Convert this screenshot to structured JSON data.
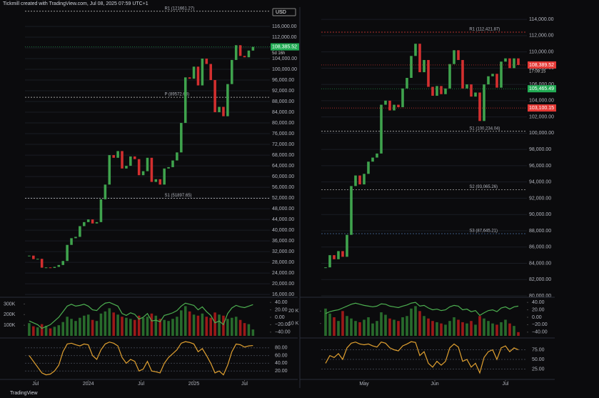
{
  "header": "Tickmill created with TradingView.com, Jul 08, 2025 07:59 UTC+1",
  "currency": "USD",
  "footer": "TradingView",
  "chart_data": [
    {
      "type": "candlestick",
      "values": [
        30500,
        29200,
        29300,
        26000,
        26100,
        25900,
        26300,
        27000,
        28500,
        34500,
        37000,
        37500,
        41500,
        43000,
        44000,
        42500,
        43000,
        51500,
        57000,
        68000,
        67000,
        69500,
        63000,
        64000,
        67500,
        66500,
        60500,
        62000,
        67000,
        58000,
        59000,
        57000,
        63000,
        63500,
        66000,
        69000,
        80000,
        97000,
        96500,
        101000,
        94000,
        104000,
        102000,
        96000,
        84000,
        86000,
        82500,
        94500,
        103500,
        109000,
        105000,
        104500,
        107000,
        108385.52
      ],
      "up_color": "#3fa34d",
      "down_color": "#d32f2f",
      "xlim": [
        -1,
        57
      ],
      "xticks": [
        {
          "value": 1.5,
          "label": "Jul"
        },
        {
          "value": 14,
          "label": "2024"
        },
        {
          "value": 26.5,
          "label": "Jul"
        },
        {
          "value": 39,
          "label": "2025"
        },
        {
          "value": 51,
          "label": "Jul"
        }
      ],
      "ylim": [
        15500,
        123200
      ],
      "yticks": [
        {
          "value": 116000,
          "label": "116,000.00"
        },
        {
          "value": 112000,
          "label": "112,000.00"
        },
        {
          "value": 108000,
          "label": "108,000.00"
        },
        {
          "value": 104000,
          "label": "104,000.00"
        },
        {
          "value": 100000,
          "label": "100,000.00"
        },
        {
          "value": 96000,
          "label": "96,000.00"
        },
        {
          "value": 92000,
          "label": "92,000.00"
        },
        {
          "value": 88000,
          "label": "88,000.00"
        },
        {
          "value": 84000,
          "label": "84,000.00"
        },
        {
          "value": 80000,
          "label": "80,000.00"
        },
        {
          "value": 76000,
          "label": "76,000.00"
        },
        {
          "value": 72000,
          "label": "72,000.00"
        },
        {
          "value": 68000,
          "label": "68,000.00"
        },
        {
          "value": 64000,
          "label": "64,000.00"
        },
        {
          "value": 60000,
          "label": "60,000.00"
        },
        {
          "value": 56000,
          "label": "56,000.00"
        },
        {
          "value": 52000,
          "label": "52,000.00"
        },
        {
          "value": 48000,
          "label": "48,000.00"
        },
        {
          "value": 44000,
          "label": "44,000.00"
        },
        {
          "value": 40000,
          "label": "40,000.00"
        },
        {
          "value": 36000,
          "label": "36,000.00"
        },
        {
          "value": 32000,
          "label": "32,000.00"
        },
        {
          "value": 28000,
          "label": "28,000.00"
        },
        {
          "value": 24000,
          "label": "24,000.00"
        },
        {
          "value": 20000,
          "label": "20,000.00"
        },
        {
          "value": 16000,
          "label": "16,000.00"
        }
      ],
      "levels": [
        {
          "label": "R1 (121661.27)",
          "value": 121661.27,
          "color": "#cccccc"
        },
        {
          "label": "P (89572.63)",
          "value": 89572.63,
          "color": "#cccccc"
        },
        {
          "label": "S1 (51897.65)",
          "value": 51897.65,
          "color": "#cccccc"
        }
      ],
      "price_labels": [
        {
          "value": 108385.52,
          "label": "108,385.52",
          "color": "#22ab54"
        }
      ],
      "countdown": "5d 16h",
      "volume": {
        "values": [
          120000,
          90000,
          80000,
          110000,
          95000,
          70000,
          85000,
          100000,
          130000,
          180000,
          160000,
          140000,
          170000,
          190000,
          200000,
          150000,
          140000,
          210000,
          230000,
          260000,
          220000,
          200000,
          180000,
          170000,
          160000,
          150000,
          190000,
          170000,
          180000,
          210000,
          190000,
          160000,
          150000,
          140000,
          160000,
          180000,
          240000,
          280000,
          230000,
          200000,
          190000,
          210000,
          180000,
          170000,
          220000,
          200000,
          190000,
          160000,
          170000,
          180000,
          150000,
          120000,
          110000,
          60000
        ],
        "ylim": [
          0,
          350000
        ],
        "yticks": [
          {
            "value": 300000,
            "label": "300K"
          },
          {
            "value": 200000,
            "label": "200K"
          },
          {
            "value": 100000,
            "label": "100K"
          }
        ]
      },
      "oscillator": {
        "color": "#4caf50",
        "values": [
          -10,
          -15,
          -20,
          -30,
          -25,
          -20,
          -10,
          0,
          15,
          30,
          35,
          30,
          32,
          35,
          30,
          20,
          18,
          30,
          38,
          40,
          35,
          30,
          10,
          5,
          12,
          8,
          -5,
          0,
          10,
          -10,
          -8,
          -12,
          5,
          8,
          12,
          18,
          30,
          38,
          35,
          32,
          20,
          28,
          15,
          5,
          -15,
          -10,
          -20,
          10,
          25,
          32,
          28,
          26,
          30,
          34
        ],
        "ylim": [
          -50,
          50
        ],
        "yticks": [
          {
            "value": 40,
            "label": "40.00"
          },
          {
            "value": 20,
            "label": "20.00"
          },
          {
            "value": 0,
            "label": "0.00"
          },
          {
            "value": -20,
            "label": "−20.00"
          },
          {
            "value": -40,
            "label": "−40.00"
          }
        ]
      },
      "stochastic": {
        "color": "#e0a030",
        "values": [
          60,
          45,
          30,
          15,
          10,
          12,
          20,
          35,
          70,
          90,
          92,
          88,
          85,
          90,
          88,
          60,
          50,
          75,
          90,
          95,
          92,
          85,
          55,
          40,
          50,
          45,
          20,
          25,
          45,
          20,
          18,
          15,
          40,
          55,
          65,
          75,
          92,
          96,
          94,
          90,
          70,
          78,
          60,
          40,
          15,
          20,
          10,
          35,
          70,
          90,
          88,
          82,
          85,
          86
        ],
        "ylim": [
          0,
          100
        ],
        "yticks": [
          {
            "value": 80,
            "label": "80.00"
          },
          {
            "value": 60,
            "label": "60.00"
          },
          {
            "value": 40,
            "label": "40.00"
          },
          {
            "value": 20,
            "label": "20.00"
          }
        ]
      }
    },
    {
      "type": "candlestick",
      "values": [
        83500,
        85000,
        84500,
        85500,
        84800,
        87500,
        93500,
        94800,
        93700,
        95000,
        96500,
        97000,
        97500,
        103500,
        104000,
        102800,
        103500,
        103200,
        105500,
        106800,
        109500,
        111000,
        107500,
        109000,
        105700,
        104600,
        105800,
        104800,
        105500,
        108500,
        110200,
        109000,
        105500,
        106000,
        104500,
        105000,
        101500,
        106000,
        107000,
        107300,
        105600,
        108800,
        109200,
        108000,
        109200,
        108389.52
      ],
      "up_color": "#3fa34d",
      "down_color": "#d32f2f",
      "xlim": [
        -1,
        47
      ],
      "xticks": [
        {
          "value": 9,
          "label": "May"
        },
        {
          "value": 25.5,
          "label": "Jun"
        },
        {
          "value": 42,
          "label": "Jul"
        }
      ],
      "ylim": [
        80000,
        115500
      ],
      "yticks": [
        {
          "value": 114000,
          "label": "114,000.00"
        },
        {
          "value": 112000,
          "label": "112,000.00"
        },
        {
          "value": 110000,
          "label": "110,000.00"
        },
        {
          "value": 108000,
          "label": "108,000.00"
        },
        {
          "value": 106000,
          "label": "106,000.00"
        },
        {
          "value": 104000,
          "label": "104,000.00"
        },
        {
          "value": 102000,
          "label": "102,000.00"
        },
        {
          "value": 100000,
          "label": "100,000.00"
        },
        {
          "value": 98000,
          "label": "98,000.00"
        },
        {
          "value": 96000,
          "label": "96,000.00"
        },
        {
          "value": 94000,
          "label": "94,000.00"
        },
        {
          "value": 92000,
          "label": "92,000.00"
        },
        {
          "value": 90000,
          "label": "90,000.00"
        },
        {
          "value": 88000,
          "label": "88,000.00"
        },
        {
          "value": 86000,
          "label": "86,000.00"
        },
        {
          "value": 84000,
          "label": "84,000.00"
        },
        {
          "value": 82000,
          "label": "82,000.00"
        },
        {
          "value": 80000,
          "label": "80,000.00"
        }
      ],
      "levels": [
        {
          "label": "R1 (112,421.87)",
          "value": 112421.87,
          "color": "#e53935"
        },
        {
          "label": "S1 (100,234.04)",
          "value": 100234.04,
          "color": "#cccccc"
        },
        {
          "label": "S2 (93,065.26)",
          "value": 93065.26,
          "color": "#cccccc"
        },
        {
          "label": "S3 (87,645.21)",
          "value": 87645.21,
          "color": "#4a6fa5"
        }
      ],
      "price_labels": [
        {
          "value": 108389.52,
          "label": "108,389.52",
          "color": "#e53935"
        },
        {
          "value": 105465.49,
          "label": "105,465.49",
          "color": "#22ab54"
        },
        {
          "value": 103100.15,
          "label": "103,100.15",
          "color": "#e53935"
        }
      ],
      "countdown": "17:09:15",
      "volume": {
        "values": [
          22000,
          18000,
          15000,
          12000,
          20000,
          16000,
          14000,
          12000,
          11000,
          13000,
          15000,
          10000,
          12000,
          19000,
          17000,
          14000,
          13000,
          12000,
          15000,
          16000,
          22000,
          24000,
          20000,
          16000,
          14000,
          12000,
          11000,
          10000,
          9000,
          12000,
          15000,
          13000,
          11000,
          10000,
          12000,
          9000,
          16000,
          14000,
          12000,
          10000,
          9000,
          11000,
          13000,
          10000,
          8000,
          3000
        ],
        "ylim": [
          0,
          30000
        ],
        "yticks": [
          {
            "value": 20000,
            "label": "20 K"
          },
          {
            "value": 10000,
            "label": "10 K"
          }
        ]
      },
      "oscillator": {
        "color": "#4caf50",
        "values": [
          10,
          15,
          18,
          20,
          25,
          30,
          35,
          38,
          35,
          32,
          30,
          28,
          30,
          36,
          35,
          30,
          28,
          26,
          30,
          33,
          38,
          40,
          30,
          32,
          25,
          20,
          22,
          18,
          20,
          28,
          32,
          30,
          20,
          22,
          15,
          18,
          5,
          12,
          18,
          20,
          15,
          25,
          28,
          22,
          28,
          30
        ],
        "ylim": [
          -50,
          50
        ],
        "yticks": [
          {
            "value": 40,
            "label": "40.00"
          },
          {
            "value": 20,
            "label": "20.00"
          },
          {
            "value": 0,
            "label": "0.00"
          },
          {
            "value": -20,
            "label": "−20.00"
          },
          {
            "value": -40,
            "label": "−40.00"
          }
        ]
      },
      "stochastic": {
        "color": "#e0a030",
        "values": [
          40,
          60,
          55,
          65,
          50,
          80,
          92,
          95,
          90,
          88,
          90,
          85,
          82,
          95,
          92,
          80,
          75,
          72,
          85,
          90,
          96,
          94,
          60,
          70,
          40,
          30,
          45,
          35,
          45,
          80,
          90,
          82,
          45,
          50,
          30,
          40,
          15,
          55,
          70,
          75,
          50,
          80,
          85,
          70,
          80,
          75
        ],
        "ylim": [
          0,
          100
        ],
        "yticks": [
          {
            "value": 75,
            "label": "75.00"
          },
          {
            "value": 50,
            "label": "50.00"
          },
          {
            "value": 25,
            "label": "25.00"
          }
        ]
      }
    }
  ]
}
